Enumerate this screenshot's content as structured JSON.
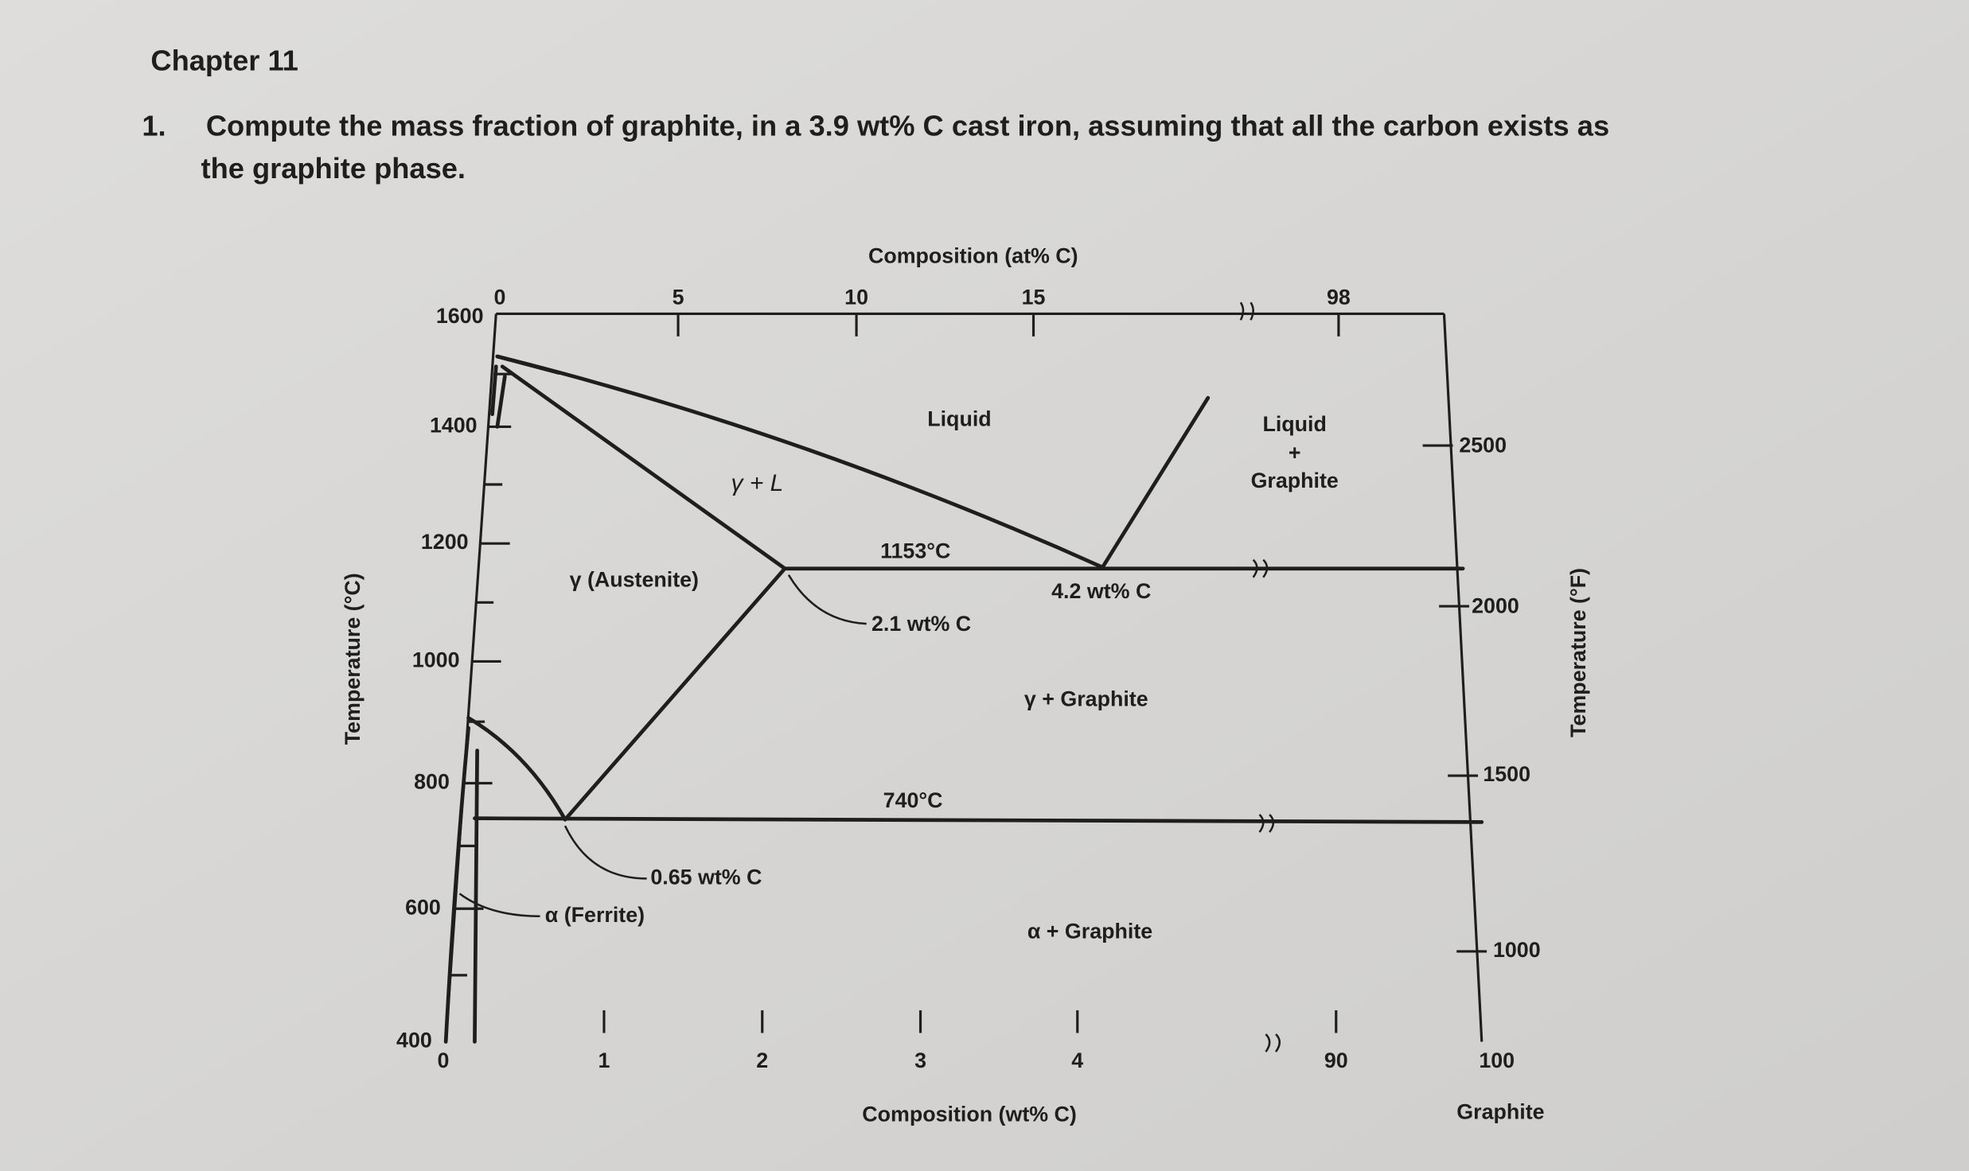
{
  "header": {
    "chapter": "Chapter 11"
  },
  "question": {
    "number": "1.",
    "lines": [
      "Compute the mass fraction of graphite, in a 3.9 wt% C cast iron, assuming that all the carbon exists as",
      "the graphite phase."
    ]
  },
  "diagram": {
    "top_axis": {
      "title": "Composition (at% C)",
      "ticks": [
        "0",
        "5",
        "10",
        "15",
        "98"
      ]
    },
    "left_axis": {
      "title": "Temperature (°C)",
      "ticks": [
        "1600",
        "1400",
        "1200",
        "1000",
        "800",
        "600",
        "400"
      ]
    },
    "right_axis": {
      "title": "Temperature (°F)",
      "ticks": [
        "2500",
        "2000",
        "1500",
        "1000"
      ]
    },
    "bottom_axis": {
      "title": "Composition (wt% C)",
      "ticks": [
        "0",
        "1",
        "2",
        "3",
        "4",
        "90",
        "100"
      ],
      "end_label": "Graphite"
    },
    "regions": {
      "liquid": "Liquid",
      "gamma_l": "γ + L",
      "austenite": "γ (Austenite)",
      "eutectic_t": "1153°C",
      "eutectic_gamma": "2.1 wt% C",
      "eutectic_c": "4.2 wt% C",
      "gamma_graphite": "γ + Graphite",
      "eutectoid_t": "740°C",
      "eutectoid_c": "0.65 wt% C",
      "ferrite": "α (Ferrite)",
      "alpha_graphite": "α + Graphite",
      "liquid_graphite": [
        "Liquid",
        "+",
        "Graphite"
      ]
    }
  }
}
